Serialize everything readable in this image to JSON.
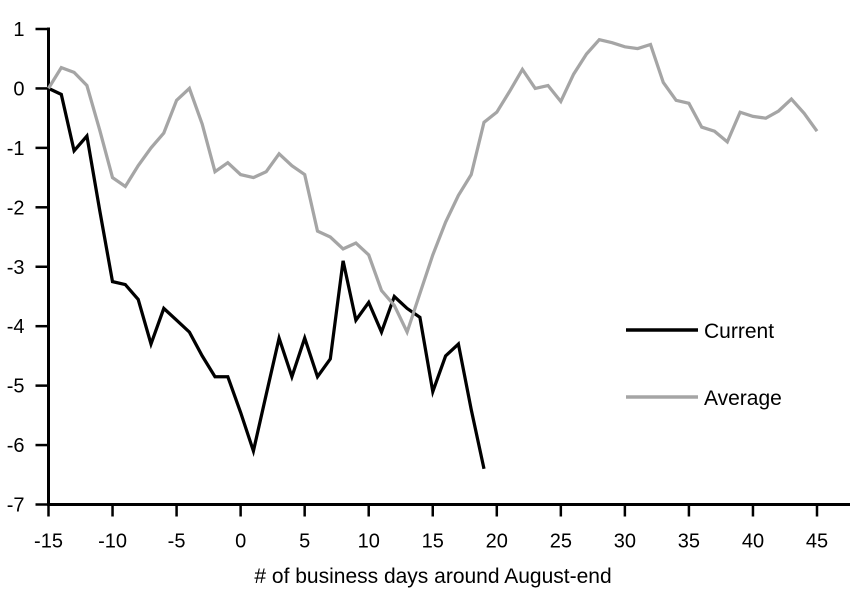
{
  "chart_data": {
    "type": "line",
    "title": "",
    "xlabel": "# of business days around August-end",
    "ylabel": "",
    "xlim": [
      -15,
      45
    ],
    "ylim": [
      -7,
      1
    ],
    "xticks": [
      -15,
      -10,
      -5,
      0,
      5,
      10,
      15,
      20,
      25,
      30,
      35,
      40,
      45
    ],
    "yticks": [
      1,
      0,
      -1,
      -2,
      -3,
      -4,
      -5,
      -6,
      -7
    ],
    "grid": false,
    "legend_position": "right-middle",
    "series": [
      {
        "name": "Current",
        "color": "#000000",
        "x": [
          -15,
          -14,
          -13,
          -12,
          -11,
          -10,
          -9,
          -8,
          -7,
          -6,
          -5,
          -4,
          -3,
          -2,
          -1,
          0,
          1,
          2,
          3,
          4,
          5,
          6,
          7,
          8,
          9,
          10,
          11,
          12,
          13,
          14,
          15,
          16,
          17,
          18,
          19
        ],
        "values": [
          0.0,
          -0.1,
          -1.05,
          -0.8,
          -2.05,
          -3.25,
          -3.3,
          -3.55,
          -4.3,
          -3.7,
          -3.9,
          -4.1,
          -4.5,
          -4.85,
          -4.85,
          -5.45,
          -6.1,
          -5.15,
          -4.2,
          -4.85,
          -4.2,
          -4.85,
          -4.55,
          -2.9,
          -3.9,
          -3.6,
          -4.1,
          -3.5,
          -3.7,
          -3.85,
          -5.1,
          -4.5,
          -4.3,
          -5.4,
          -6.4
        ]
      },
      {
        "name": "Average",
        "color": "#a5a5a5",
        "x": [
          -15,
          -14,
          -13,
          -12,
          -11,
          -10,
          -9,
          -8,
          -7,
          -6,
          -5,
          -4,
          -3,
          -2,
          -1,
          0,
          1,
          2,
          3,
          4,
          5,
          6,
          7,
          8,
          9,
          10,
          11,
          12,
          13,
          14,
          15,
          16,
          17,
          18,
          19,
          20,
          21,
          22,
          23,
          24,
          25,
          26,
          27,
          28,
          29,
          30,
          31,
          32,
          33,
          34,
          35,
          36,
          37,
          38,
          39,
          40,
          41,
          42,
          43,
          44,
          45
        ],
        "values": [
          0.0,
          0.35,
          0.27,
          0.05,
          -0.7,
          -1.5,
          -1.65,
          -1.3,
          -1.0,
          -0.75,
          -0.2,
          0.0,
          -0.6,
          -1.4,
          -1.25,
          -1.45,
          -1.5,
          -1.4,
          -1.1,
          -1.3,
          -1.45,
          -2.4,
          -2.5,
          -2.7,
          -2.6,
          -2.8,
          -3.4,
          -3.65,
          -4.1,
          -3.45,
          -2.8,
          -2.25,
          -1.8,
          -1.45,
          -0.57,
          -0.4,
          -0.05,
          0.32,
          0.0,
          0.05,
          -0.22,
          0.24,
          0.58,
          0.82,
          0.77,
          0.7,
          0.67,
          0.74,
          0.1,
          -0.2,
          -0.25,
          -0.65,
          -0.72,
          -0.9,
          -0.4,
          -0.47,
          -0.5,
          -0.38,
          -0.18,
          -0.42,
          -0.72
        ]
      }
    ]
  },
  "legend": {
    "current_label": "Current",
    "average_label": "Average"
  },
  "colors": {
    "current": "#000000",
    "average": "#a5a5a5",
    "axis": "#000000",
    "background": "#ffffff"
  }
}
